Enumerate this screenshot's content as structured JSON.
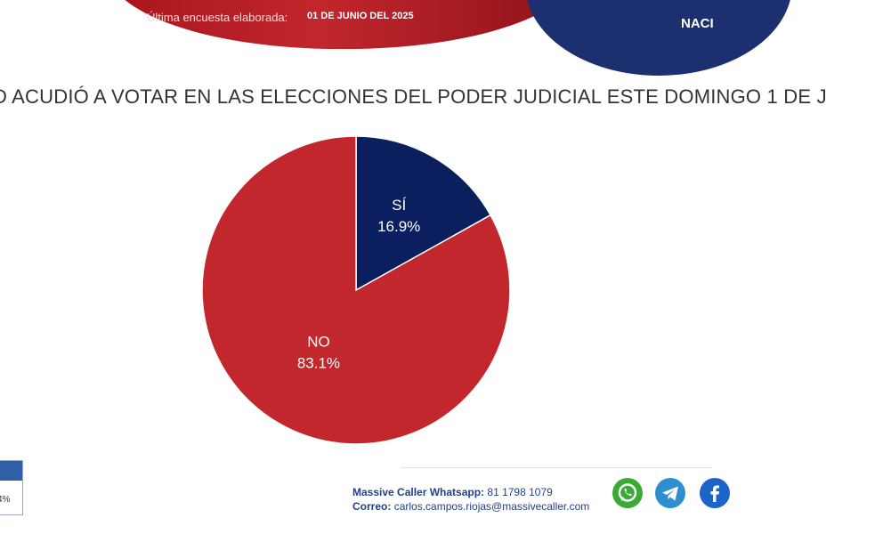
{
  "header": {
    "survey_label": "Última encuesta elaborada:",
    "survey_date": "01 DE JUNIO DEL 2025",
    "region_label": "NACI"
  },
  "question": "D ACUDIÓ A VOTAR EN LAS ELECCIONES DEL PODER JUDICIAL ESTE DOMINGO 1 DE J",
  "chart_data": {
    "type": "pie",
    "title": "",
    "categories": [
      "SÍ",
      "NO"
    ],
    "values": [
      16.9,
      83.1
    ],
    "value_labels": [
      "16.9%",
      "83.1%"
    ],
    "colors": [
      "#0b1f5f",
      "#c1272d"
    ]
  },
  "left_partial": {
    "text": "4%"
  },
  "footer": {
    "whatsapp_label": "Massive Caller Whatsapp:",
    "whatsapp_number": "81 1798 1079",
    "email_label": "Correo:",
    "email": "carlos.campos.riojas@massivecaller.com"
  },
  "icons": [
    "whatsapp-icon",
    "telegram-icon",
    "facebook-icon"
  ]
}
